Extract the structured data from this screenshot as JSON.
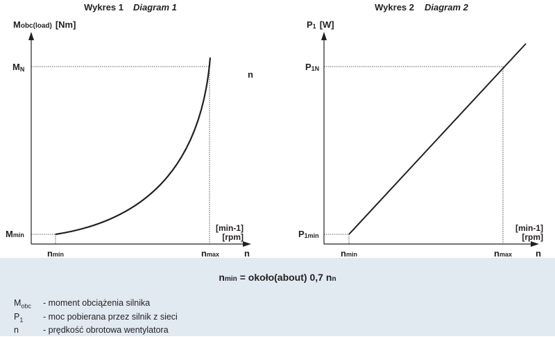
{
  "colors": {
    "background_top": "#ffffff",
    "background_bottom": "#e1eaf1",
    "line": "#231f20",
    "guide": "#231f20"
  },
  "diagram1": {
    "title_pl": "Wykres 1",
    "title_en": "Diagram 1",
    "y_axis_symbol": "M",
    "y_axis_sub": "obc(load)",
    "y_axis_unit": "[Nm]",
    "y_top_symbol": "M",
    "y_top_sub": "N",
    "y_bottom_symbol": "M",
    "y_bottom_sub": "min",
    "x_axis_symbol": "n",
    "x_unit_line1": "[min-1]",
    "x_unit_line2": "[rpm]",
    "x_left_symbol": "n",
    "x_left_sub": "min",
    "x_right_symbol": "n",
    "x_right_sub": "max",
    "curve": "rising, convex (approximately quadratic/cubic in n)"
  },
  "diagram2": {
    "title_pl": "Wykres 2",
    "title_en": "Diagram 2",
    "y_axis_symbol": "P",
    "y_axis_sub": "1",
    "y_axis_unit": "[W]",
    "y_top_symbol": "P",
    "y_top_sub": "1N",
    "y_bottom_symbol": "P",
    "y_bottom_sub": "1min",
    "x_axis_symbol": "n",
    "x_unit_line1": "[min-1]",
    "x_unit_line2": "[rpm]",
    "x_left_symbol": "n",
    "x_left_sub": "min",
    "x_right_symbol": "n",
    "x_right_sub": "max",
    "curve": "rising straight line"
  },
  "formula": {
    "lhs_symbol": "n",
    "lhs_sub": "min",
    "middle": "= około(about)  0,7",
    "rhs_symbol": "n",
    "rhs_sub": "n"
  },
  "legend": [
    {
      "symbol": "M",
      "sub": "obc",
      "text": "- moment obciążenia silnika"
    },
    {
      "symbol": "P",
      "sub": "1",
      "text": "- moc pobierana przez silnik z sieci"
    },
    {
      "symbol": "n",
      "sub": "",
      "text": "- prędkość obrotowa wentylatora"
    }
  ]
}
